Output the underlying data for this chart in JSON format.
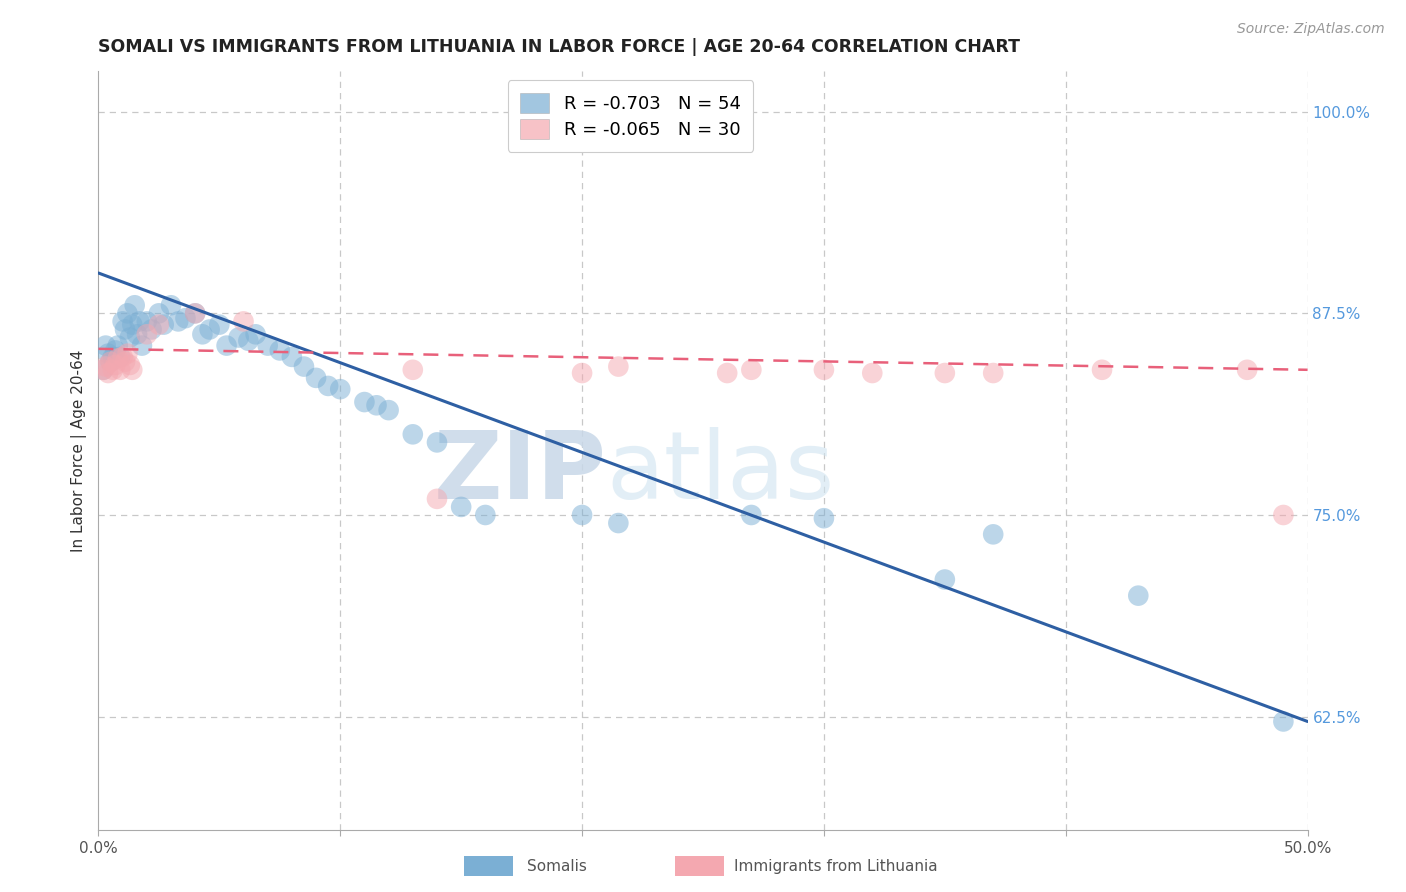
{
  "title": "SOMALI VS IMMIGRANTS FROM LITHUANIA IN LABOR FORCE | AGE 20-64 CORRELATION CHART",
  "source": "Source: ZipAtlas.com",
  "ylabel": "In Labor Force | Age 20-64",
  "xlim": [
    0.0,
    0.5
  ],
  "ylim": [
    0.555,
    1.025
  ],
  "xticks": [
    0.0,
    0.1,
    0.2,
    0.3,
    0.4,
    0.5
  ],
  "xticklabels": [
    "0.0%",
    "",
    "",
    "",
    "",
    "50.0%"
  ],
  "yticks_right": [
    0.625,
    0.75,
    0.875,
    1.0
  ],
  "ytick_right_labels": [
    "62.5%",
    "75.0%",
    "87.5%",
    "100.0%"
  ],
  "blue_color": "#7BAFD4",
  "pink_color": "#F4A8B0",
  "blue_line_color": "#2E5FA3",
  "pink_line_color": "#E8607A",
  "watermark_zip": "ZIP",
  "watermark_atlas": "atlas",
  "legend_r1": "R = -0.703",
  "legend_n1": "N = 54",
  "legend_r2": "R = -0.065",
  "legend_n2": "N = 30",
  "somali_x": [
    0.002,
    0.003,
    0.004,
    0.005,
    0.006,
    0.007,
    0.008,
    0.009,
    0.01,
    0.011,
    0.012,
    0.013,
    0.014,
    0.015,
    0.016,
    0.017,
    0.018,
    0.02,
    0.022,
    0.025,
    0.027,
    0.03,
    0.033,
    0.036,
    0.04,
    0.043,
    0.046,
    0.05,
    0.053,
    0.058,
    0.062,
    0.065,
    0.07,
    0.075,
    0.08,
    0.085,
    0.09,
    0.095,
    0.1,
    0.11,
    0.115,
    0.12,
    0.13,
    0.14,
    0.15,
    0.16,
    0.2,
    0.215,
    0.27,
    0.3,
    0.37,
    0.49,
    0.35,
    0.43
  ],
  "somali_y": [
    0.84,
    0.855,
    0.85,
    0.845,
    0.848,
    0.852,
    0.855,
    0.848,
    0.87,
    0.865,
    0.875,
    0.86,
    0.868,
    0.88,
    0.862,
    0.87,
    0.855,
    0.87,
    0.865,
    0.875,
    0.868,
    0.88,
    0.87,
    0.872,
    0.875,
    0.862,
    0.865,
    0.868,
    0.855,
    0.86,
    0.858,
    0.862,
    0.855,
    0.852,
    0.848,
    0.842,
    0.835,
    0.83,
    0.828,
    0.82,
    0.818,
    0.815,
    0.8,
    0.795,
    0.755,
    0.75,
    0.75,
    0.745,
    0.75,
    0.748,
    0.738,
    0.622,
    0.71,
    0.7
  ],
  "lithuania_x": [
    0.002,
    0.003,
    0.004,
    0.005,
    0.006,
    0.007,
    0.008,
    0.009,
    0.01,
    0.011,
    0.012,
    0.013,
    0.014,
    0.02,
    0.025,
    0.04,
    0.06,
    0.13,
    0.14,
    0.2,
    0.215,
    0.26,
    0.3,
    0.37,
    0.415,
    0.475,
    0.49,
    0.35,
    0.27,
    0.32
  ],
  "lithuania_y": [
    0.84,
    0.842,
    0.838,
    0.845,
    0.84,
    0.843,
    0.847,
    0.84,
    0.848,
    0.845,
    0.85,
    0.843,
    0.84,
    0.862,
    0.868,
    0.875,
    0.87,
    0.84,
    0.76,
    0.838,
    0.842,
    0.838,
    0.84,
    0.838,
    0.84,
    0.84,
    0.75,
    0.838,
    0.84,
    0.838
  ],
  "blue_trend_x": [
    0.0,
    0.5
  ],
  "blue_trend_y": [
    0.9,
    0.622
  ],
  "pink_trend_x": [
    0.0,
    0.5
  ],
  "pink_trend_y": [
    0.853,
    0.84
  ],
  "grid_color": "#C8C8C8",
  "background_color": "#FFFFFF",
  "title_fontsize": 12.5,
  "source_fontsize": 10,
  "axis_label_fontsize": 11,
  "tick_fontsize": 11
}
